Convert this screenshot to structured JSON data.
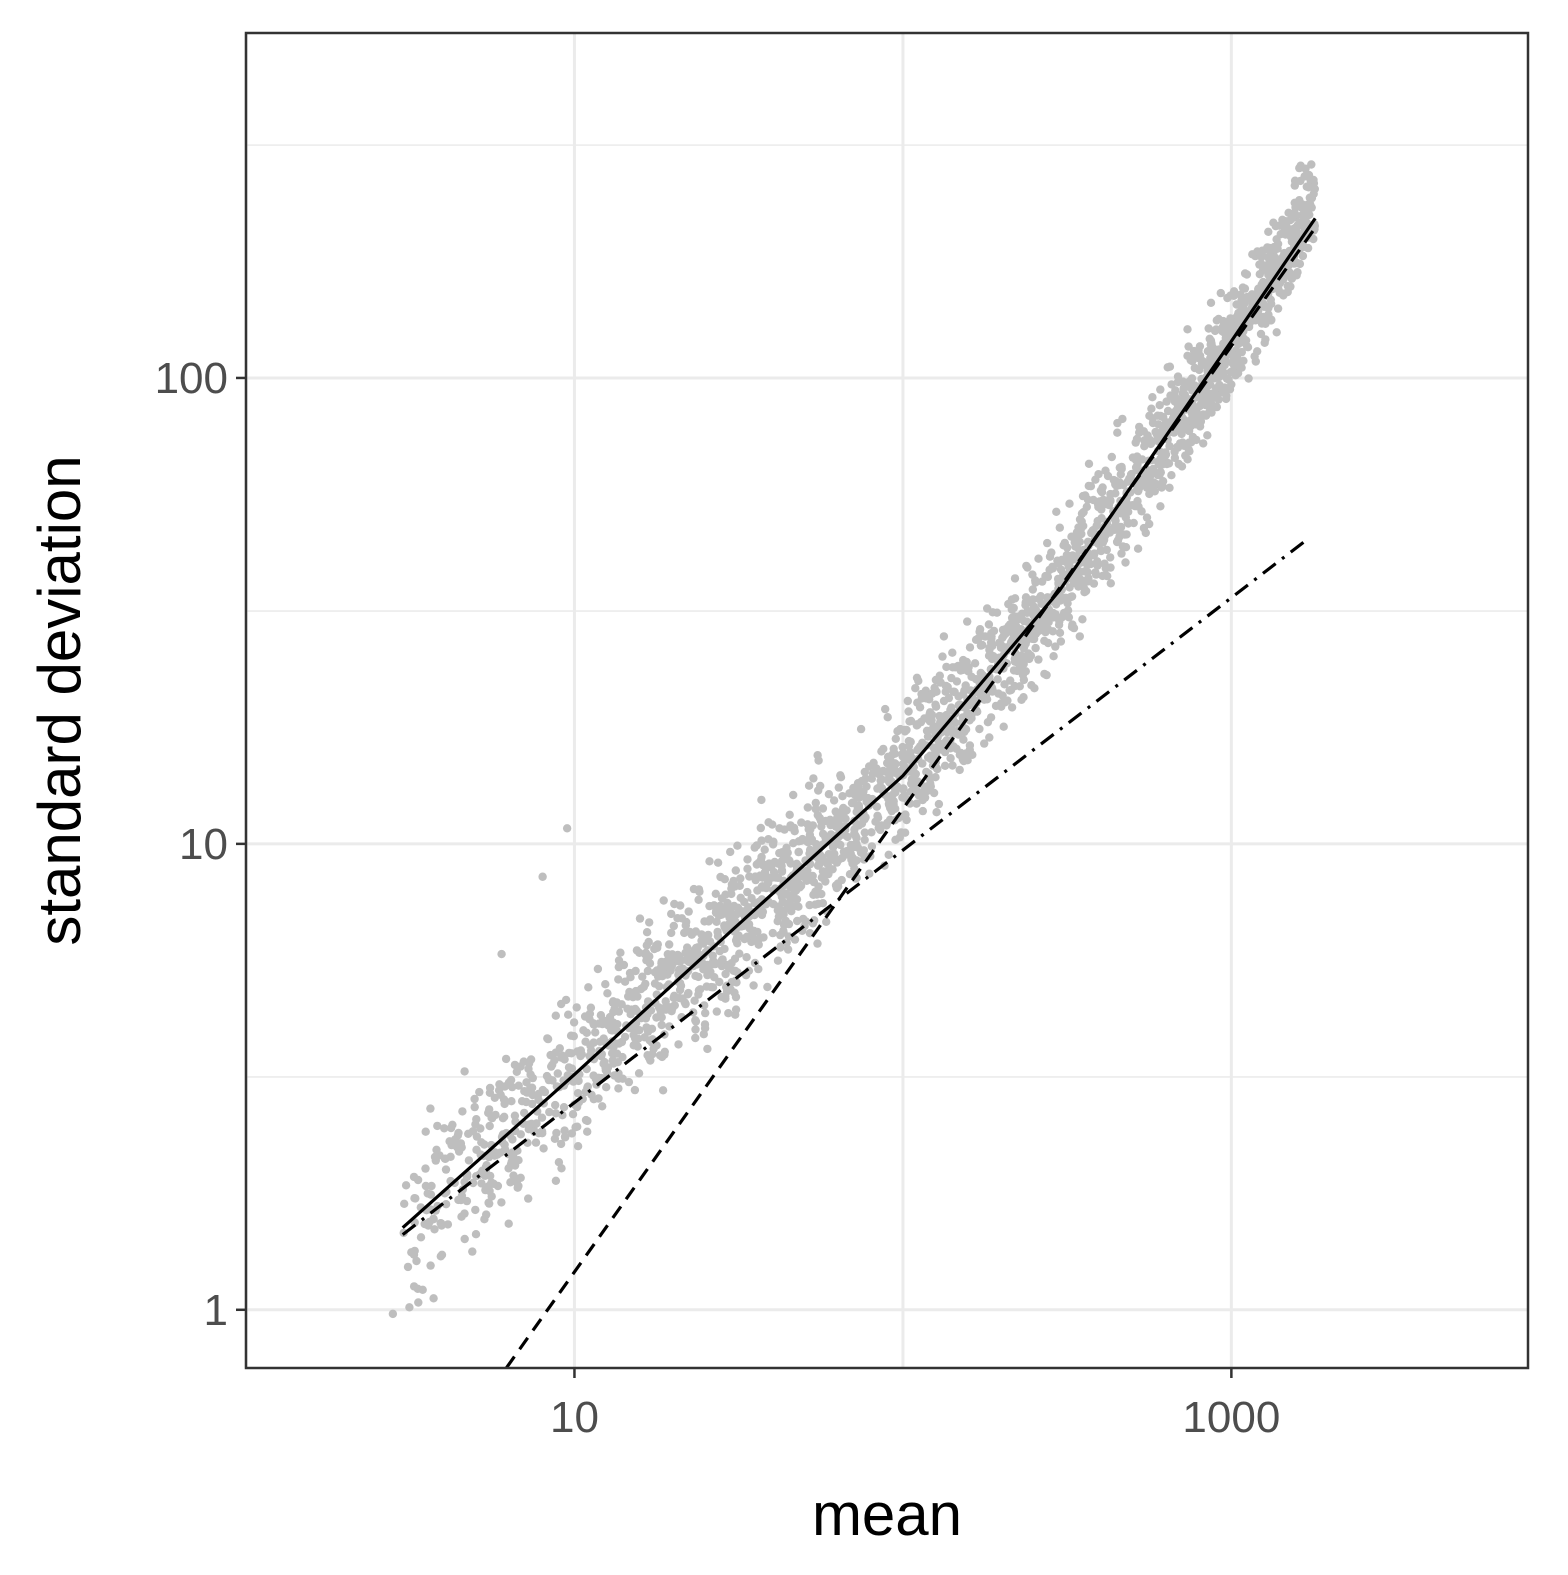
{
  "chart_data": {
    "type": "scatter",
    "title": "",
    "xlabel": "mean",
    "ylabel": "standard deviation",
    "x_scale": "log10",
    "y_scale": "log10",
    "xlim": [
      1,
      8000
    ],
    "ylim": [
      0.75,
      550
    ],
    "x_ticks": [
      {
        "value": 10,
        "label": "10"
      },
      {
        "value": 1000,
        "label": "1000"
      }
    ],
    "y_ticks": [
      {
        "value": 1,
        "label": "1"
      },
      {
        "value": 10,
        "label": "10"
      },
      {
        "value": 100,
        "label": "100"
      }
    ],
    "x_gridlines": [
      1,
      10,
      100,
      1000
    ],
    "y_gridlines": [
      1,
      3.16,
      10,
      31.6,
      100,
      316
    ],
    "grid": true,
    "legend": "none",
    "colors": {
      "points": "#bebebe",
      "lines": "#000000",
      "grid": "#ebebeb",
      "border": "#333333"
    },
    "points_cloud": {
      "description_points": [
        {
          "x": 3,
          "sd": 1.5
        },
        {
          "x": 10,
          "sd": 3.2
        },
        {
          "x": 30,
          "sd": 6.5
        },
        {
          "x": 100,
          "sd": 14
        },
        {
          "x": 300,
          "sd": 35
        },
        {
          "x": 1000,
          "sd": 120
        },
        {
          "x": 1800,
          "sd": 240
        }
      ],
      "outliers": [
        {
          "x": 2.8,
          "sd": 0.98
        },
        {
          "x": 9.5,
          "sd": 10.8
        },
        {
          "x": 8,
          "sd": 8.5
        },
        {
          "x": 6,
          "sd": 5.8
        },
        {
          "x": 55,
          "sd": 15.5
        },
        {
          "x": 40,
          "sd": 11
        }
      ]
    },
    "series": [
      {
        "style": "solid",
        "x": [
          3,
          10,
          30,
          100,
          300,
          1000,
          1800
        ],
        "y": [
          1.5,
          3.2,
          6.5,
          14,
          35,
          120,
          220
        ]
      },
      {
        "style": "dashed",
        "x": [
          6.2,
          1800
        ],
        "y": [
          0.75,
          210
        ]
      },
      {
        "style": "dotdash",
        "x": [
          3,
          1700
        ],
        "y": [
          1.45,
          45
        ]
      }
    ]
  }
}
